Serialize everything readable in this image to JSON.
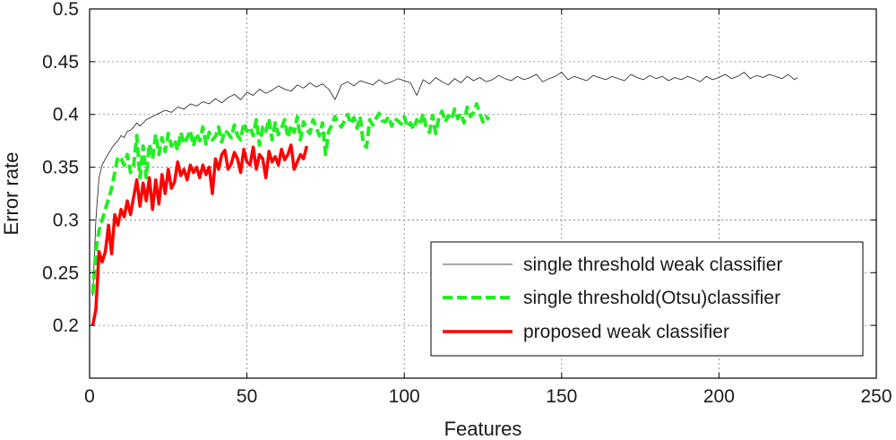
{
  "chart_data": {
    "type": "line",
    "title": "",
    "xlabel": "Features",
    "ylabel": "Error rate",
    "xlim": [
      0,
      250
    ],
    "ylim": [
      0.15,
      0.5
    ],
    "xticks": [
      0,
      50,
      100,
      150,
      200,
      250
    ],
    "xtick_labels": [
      "0",
      "50",
      "100",
      "150",
      "200",
      "250"
    ],
    "yticks": [
      0.2,
      0.25,
      0.3,
      0.35,
      0.4,
      0.45,
      0.5
    ],
    "ytick_labels": [
      "0.2",
      "0.25",
      "0.3",
      "0.35",
      "0.4",
      "0.45",
      "0.5"
    ],
    "grid": true,
    "legend_position": "lower-right",
    "series": [
      {
        "name": "single threshold weak classifier",
        "color": "#1a1a1a",
        "style": "thin-solid",
        "x": [
          1,
          2,
          3,
          4,
          5,
          6,
          7,
          8,
          9,
          10,
          11,
          12,
          13,
          14,
          15,
          16,
          18,
          20,
          22,
          24,
          26,
          28,
          30,
          32,
          34,
          36,
          38,
          40,
          42,
          44,
          46,
          48,
          50,
          52,
          54,
          56,
          58,
          60,
          62,
          64,
          66,
          68,
          70,
          72,
          74,
          76,
          78,
          80,
          82,
          84,
          86,
          88,
          90,
          92,
          94,
          96,
          98,
          100,
          102,
          104,
          106,
          108,
          110,
          112,
          114,
          116,
          118,
          120,
          122,
          124,
          126,
          128,
          130,
          132,
          134,
          136,
          138,
          140,
          142,
          144,
          146,
          148,
          150,
          152,
          154,
          156,
          158,
          160,
          162,
          164,
          166,
          168,
          170,
          172,
          174,
          176,
          178,
          180,
          182,
          184,
          186,
          188,
          190,
          192,
          194,
          196,
          198,
          200,
          202,
          204,
          206,
          208,
          210,
          212,
          214,
          216,
          218,
          220,
          222,
          224,
          225
        ],
        "values": [
          0.228,
          0.3,
          0.34,
          0.352,
          0.358,
          0.363,
          0.368,
          0.372,
          0.375,
          0.38,
          0.378,
          0.384,
          0.385,
          0.388,
          0.392,
          0.389,
          0.395,
          0.398,
          0.401,
          0.404,
          0.402,
          0.407,
          0.405,
          0.41,
          0.408,
          0.412,
          0.41,
          0.415,
          0.411,
          0.416,
          0.419,
          0.414,
          0.421,
          0.418,
          0.424,
          0.42,
          0.423,
          0.427,
          0.424,
          0.422,
          0.428,
          0.425,
          0.43,
          0.426,
          0.429,
          0.424,
          0.414,
          0.428,
          0.431,
          0.427,
          0.432,
          0.43,
          0.428,
          0.433,
          0.429,
          0.431,
          0.434,
          0.432,
          0.43,
          0.418,
          0.433,
          0.429,
          0.435,
          0.431,
          0.428,
          0.434,
          0.43,
          0.436,
          0.432,
          0.435,
          0.431,
          0.433,
          0.437,
          0.434,
          0.432,
          0.436,
          0.433,
          0.435,
          0.438,
          0.431,
          0.434,
          0.436,
          0.44,
          0.433,
          0.436,
          0.434,
          0.432,
          0.437,
          0.435,
          0.433,
          0.436,
          0.434,
          0.432,
          0.438,
          0.435,
          0.433,
          0.437,
          0.434,
          0.436,
          0.432,
          0.435,
          0.433,
          0.436,
          0.434,
          0.431,
          0.436,
          0.433,
          0.435,
          0.438,
          0.434,
          0.436,
          0.44,
          0.434,
          0.437,
          0.435,
          0.438,
          0.436,
          0.434,
          0.438,
          0.433,
          0.435
        ]
      },
      {
        "name": "single threshold(Otsu)classifier",
        "color": "#22ee22",
        "style": "thick-dashed",
        "x": [
          1,
          2,
          3,
          4,
          5,
          6,
          7,
          8,
          9,
          10,
          11,
          12,
          13,
          14,
          15,
          16,
          17,
          18,
          19,
          20,
          21,
          22,
          23,
          24,
          25,
          26,
          27,
          28,
          29,
          30,
          31,
          32,
          33,
          34,
          35,
          36,
          37,
          38,
          39,
          40,
          41,
          42,
          43,
          44,
          45,
          46,
          47,
          48,
          49,
          50,
          51,
          52,
          53,
          54,
          55,
          56,
          57,
          58,
          59,
          60,
          61,
          62,
          63,
          64,
          65,
          66,
          67,
          68,
          69,
          70,
          71,
          72,
          73,
          74,
          75,
          76,
          77,
          78,
          79,
          80,
          81,
          82,
          83,
          84,
          85,
          86,
          87,
          88,
          89,
          90,
          91,
          92,
          93,
          94,
          95,
          96,
          97,
          98,
          99,
          100,
          101,
          102,
          103,
          104,
          105,
          106,
          107,
          108,
          109,
          110,
          111,
          112,
          113,
          114,
          115,
          116,
          117,
          118,
          119,
          120,
          121,
          122,
          123,
          124,
          125,
          126,
          127
        ],
        "values": [
          0.23,
          0.27,
          0.29,
          0.3,
          0.31,
          0.32,
          0.33,
          0.345,
          0.36,
          0.358,
          0.352,
          0.362,
          0.345,
          0.352,
          0.38,
          0.34,
          0.37,
          0.34,
          0.372,
          0.358,
          0.381,
          0.362,
          0.378,
          0.365,
          0.382,
          0.37,
          0.376,
          0.366,
          0.383,
          0.372,
          0.378,
          0.385,
          0.37,
          0.382,
          0.375,
          0.388,
          0.372,
          0.383,
          0.376,
          0.379,
          0.388,
          0.374,
          0.385,
          0.382,
          0.378,
          0.39,
          0.38,
          0.376,
          0.392,
          0.384,
          0.388,
          0.38,
          0.395,
          0.371,
          0.388,
          0.384,
          0.396,
          0.376,
          0.392,
          0.381,
          0.387,
          0.395,
          0.378,
          0.39,
          0.383,
          0.398,
          0.376,
          0.393,
          0.386,
          0.382,
          0.395,
          0.388,
          0.38,
          0.392,
          0.362,
          0.384,
          0.39,
          0.398,
          0.392,
          0.388,
          0.394,
          0.4,
          0.391,
          0.397,
          0.387,
          0.398,
          0.372,
          0.369,
          0.395,
          0.39,
          0.396,
          0.401,
          0.394,
          0.393,
          0.398,
          0.389,
          0.396,
          0.394,
          0.391,
          0.398,
          0.388,
          0.392,
          0.386,
          0.395,
          0.39,
          0.401,
          0.387,
          0.383,
          0.399,
          0.382,
          0.397,
          0.403,
          0.393,
          0.399,
          0.395,
          0.405,
          0.396,
          0.401,
          0.392,
          0.407,
          0.398,
          0.402,
          0.41,
          0.401,
          0.393,
          0.398,
          0.395
        ]
      },
      {
        "name": "proposed weak classifier",
        "color": "#ff0000",
        "style": "thick-solid",
        "x": [
          1,
          2,
          3,
          4,
          5,
          6,
          7,
          8,
          9,
          10,
          11,
          12,
          13,
          14,
          15,
          16,
          17,
          18,
          19,
          20,
          21,
          22,
          23,
          24,
          25,
          26,
          27,
          28,
          29,
          30,
          31,
          32,
          33,
          34,
          35,
          36,
          37,
          38,
          39,
          40,
          41,
          42,
          43,
          44,
          45,
          46,
          47,
          48,
          49,
          50,
          51,
          52,
          53,
          54,
          55,
          56,
          57,
          58,
          59,
          60,
          61,
          62,
          63,
          64,
          65,
          66,
          67,
          68,
          69
        ],
        "values": [
          0.2,
          0.215,
          0.27,
          0.26,
          0.27,
          0.295,
          0.268,
          0.305,
          0.295,
          0.31,
          0.303,
          0.318,
          0.305,
          0.322,
          0.338,
          0.313,
          0.335,
          0.318,
          0.34,
          0.31,
          0.338,
          0.315,
          0.343,
          0.325,
          0.348,
          0.33,
          0.336,
          0.355,
          0.342,
          0.348,
          0.338,
          0.352,
          0.345,
          0.35,
          0.34,
          0.352,
          0.343,
          0.35,
          0.325,
          0.358,
          0.348,
          0.362,
          0.366,
          0.348,
          0.353,
          0.364,
          0.358,
          0.345,
          0.367,
          0.355,
          0.352,
          0.369,
          0.348,
          0.362,
          0.358,
          0.34,
          0.365,
          0.355,
          0.36,
          0.352,
          0.367,
          0.357,
          0.362,
          0.371,
          0.348,
          0.355,
          0.362,
          0.358,
          0.37
        ]
      }
    ]
  }
}
